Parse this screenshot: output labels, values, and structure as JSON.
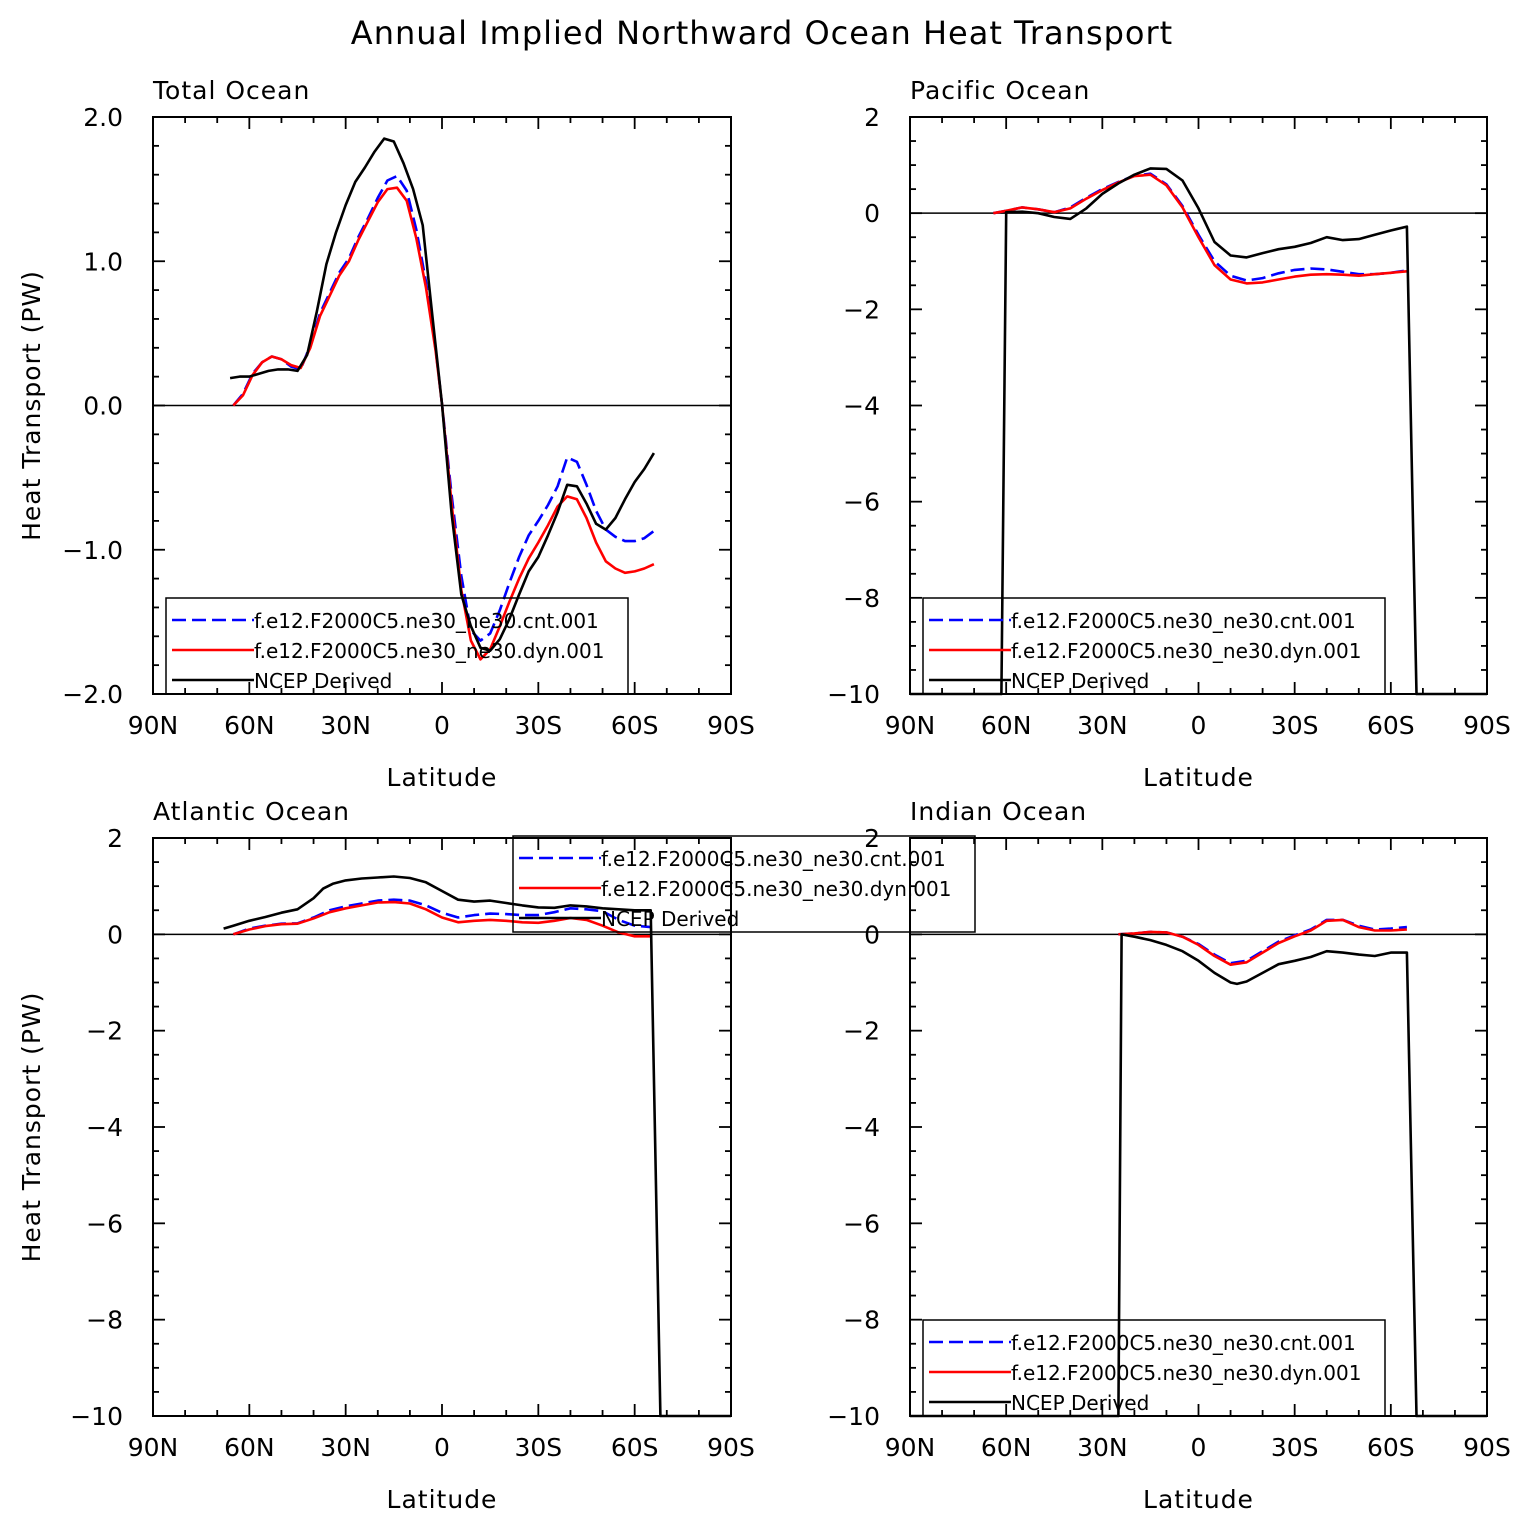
{
  "figure": {
    "title": "Annual Implied Northward Ocean Heat Transport"
  },
  "chart_data": [
    {
      "type": "line",
      "title": "Total Ocean",
      "xlabel": "Latitude",
      "ylabel": "Heat Transport (PW)",
      "xlim": [
        90,
        -90
      ],
      "ylim": [
        -2.0,
        2.0
      ],
      "xticks": [
        90,
        60,
        30,
        0,
        -30,
        -60,
        -90
      ],
      "xticklabels": [
        "90N",
        "60N",
        "30N",
        "0",
        "30S",
        "60S",
        "90S"
      ],
      "yticks": [
        -2.0,
        -1.0,
        0.0,
        1.0,
        2.0
      ],
      "yticklabels": [
        "−2.0",
        "−1.0",
        "0.0",
        "1.0",
        "2.0"
      ],
      "zero_line": true,
      "legend_position": "bottom-left",
      "series": [
        {
          "name": "f.e12.F2000C5.ne30_ne30.cnt.001",
          "color": "#0000ff",
          "dash": "dashed",
          "x": [
            65,
            62,
            59,
            56,
            53,
            50,
            47,
            44,
            41,
            38,
            35,
            32,
            29,
            26,
            23,
            20,
            17,
            14,
            11,
            8,
            5,
            2,
            0,
            -3,
            -6,
            -9,
            -12,
            -15,
            -18,
            -21,
            -24,
            -27,
            -30,
            -33,
            -36,
            -39,
            -42,
            -45,
            -48,
            -51,
            -54,
            -57,
            -60,
            -63,
            -66
          ],
          "y": [
            0.0,
            0.08,
            0.22,
            0.3,
            0.34,
            0.32,
            0.27,
            0.25,
            0.42,
            0.64,
            0.78,
            0.92,
            1.02,
            1.17,
            1.3,
            1.44,
            1.56,
            1.59,
            1.49,
            1.22,
            0.86,
            0.39,
            0.01,
            -0.62,
            -1.18,
            -1.56,
            -1.63,
            -1.58,
            -1.42,
            -1.23,
            -1.05,
            -0.9,
            -0.8,
            -0.69,
            -0.56,
            -0.36,
            -0.39,
            -0.55,
            -0.73,
            -0.86,
            -0.91,
            -0.94,
            -0.94,
            -0.92,
            -0.87
          ]
        },
        {
          "name": "f.e12.F2000C5.ne30_ne30.dyn.001",
          "color": "#ff0000",
          "dash": "solid",
          "x": [
            65,
            62,
            59,
            56,
            53,
            50,
            47,
            44,
            41,
            38,
            35,
            32,
            29,
            26,
            23,
            20,
            17,
            14,
            11,
            8,
            5,
            2,
            0,
            -3,
            -6,
            -9,
            -12,
            -15,
            -18,
            -21,
            -24,
            -27,
            -30,
            -33,
            -36,
            -39,
            -42,
            -45,
            -48,
            -51,
            -54,
            -57,
            -60,
            -63,
            -66
          ],
          "y": [
            0.0,
            0.07,
            0.21,
            0.3,
            0.34,
            0.32,
            0.28,
            0.26,
            0.4,
            0.62,
            0.76,
            0.9,
            1.0,
            1.15,
            1.28,
            1.41,
            1.5,
            1.51,
            1.42,
            1.16,
            0.82,
            0.38,
            0.01,
            -0.68,
            -1.28,
            -1.63,
            -1.76,
            -1.69,
            -1.53,
            -1.36,
            -1.2,
            -1.06,
            -0.95,
            -0.83,
            -0.7,
            -0.63,
            -0.65,
            -0.78,
            -0.95,
            -1.08,
            -1.13,
            -1.16,
            -1.15,
            -1.13,
            -1.1
          ]
        },
        {
          "name": "NCEP Derived",
          "color": "#000000",
          "dash": "solid",
          "x": [
            66,
            63,
            60,
            57,
            54,
            51,
            48,
            45,
            42,
            39,
            36,
            33,
            30,
            27,
            24,
            21,
            18,
            15,
            12,
            9,
            6,
            3,
            0,
            -3,
            -6,
            -9,
            -12,
            -15,
            -18,
            -21,
            -24,
            -27,
            -30,
            -33,
            -36,
            -39,
            -42,
            -45,
            -48,
            -51,
            -54,
            -57,
            -60,
            -63,
            -66
          ],
          "y": [
            0.19,
            0.2,
            0.2,
            0.22,
            0.24,
            0.25,
            0.25,
            0.24,
            0.35,
            0.65,
            0.98,
            1.2,
            1.39,
            1.55,
            1.65,
            1.76,
            1.85,
            1.83,
            1.68,
            1.5,
            1.25,
            0.62,
            0.01,
            -0.75,
            -1.31,
            -1.53,
            -1.68,
            -1.7,
            -1.62,
            -1.48,
            -1.31,
            -1.15,
            -1.05,
            -0.9,
            -0.74,
            -0.55,
            -0.56,
            -0.68,
            -0.82,
            -0.86,
            -0.78,
            -0.65,
            -0.53,
            -0.44,
            -0.33
          ]
        }
      ]
    },
    {
      "type": "line",
      "title": "Pacific Ocean",
      "xlabel": "Latitude",
      "ylabel": "",
      "xlim": [
        90,
        -90
      ],
      "ylim": [
        -10,
        2
      ],
      "xticks": [
        90,
        60,
        30,
        0,
        -30,
        -60,
        -90
      ],
      "xticklabels": [
        "90N",
        "60N",
        "30N",
        "0",
        "30S",
        "60S",
        "90S"
      ],
      "yticks": [
        -10,
        -8,
        -6,
        -4,
        -2,
        0,
        2
      ],
      "yticklabels": [
        "−10",
        "−8",
        "−6",
        "−4",
        "−2",
        "0",
        "2"
      ],
      "zero_line": true,
      "legend_position": "bottom-left",
      "series": [
        {
          "name": "f.e12.F2000C5.ne30_ne30.cnt.001",
          "color": "#0000ff",
          "dash": "dashed",
          "x": [
            64,
            60,
            55,
            50,
            45,
            40,
            35,
            30,
            25,
            20,
            15,
            10,
            5,
            0,
            -5,
            -10,
            -15,
            -20,
            -25,
            -30,
            -35,
            -40,
            -45,
            -50,
            -55,
            -60,
            -65
          ],
          "y": [
            0.0,
            0.05,
            0.12,
            0.08,
            0.02,
            0.12,
            0.32,
            0.5,
            0.65,
            0.78,
            0.82,
            0.6,
            0.15,
            -0.45,
            -1.0,
            -1.3,
            -1.4,
            -1.35,
            -1.25,
            -1.18,
            -1.15,
            -1.17,
            -1.22,
            -1.27,
            -1.27,
            -1.24,
            -1.19
          ]
        },
        {
          "name": "f.e12.F2000C5.ne30_ne30.dyn.001",
          "color": "#ff0000",
          "dash": "solid",
          "x": [
            64,
            60,
            55,
            50,
            45,
            40,
            35,
            30,
            25,
            20,
            15,
            10,
            5,
            0,
            -5,
            -10,
            -15,
            -20,
            -25,
            -30,
            -35,
            -40,
            -45,
            -50,
            -55,
            -60,
            -65
          ],
          "y": [
            0.0,
            0.05,
            0.12,
            0.08,
            0.02,
            0.1,
            0.3,
            0.48,
            0.64,
            0.77,
            0.8,
            0.58,
            0.12,
            -0.5,
            -1.08,
            -1.38,
            -1.46,
            -1.44,
            -1.38,
            -1.32,
            -1.28,
            -1.27,
            -1.28,
            -1.3,
            -1.27,
            -1.24,
            -1.21
          ]
        },
        {
          "name": "NCEP Derived",
          "color": "#000000",
          "dash": "solid",
          "x": [
            90,
            85,
            80,
            75,
            70,
            65,
            61.5,
            60,
            55,
            50,
            45,
            40,
            35,
            30,
            25,
            20,
            15,
            10,
            5,
            0,
            -5,
            -10,
            -15,
            -20,
            -25,
            -30,
            -35,
            -40,
            -45,
            -50,
            -55,
            -60,
            -65,
            -68,
            -70,
            -75,
            -80,
            -85,
            -90
          ],
          "y": [
            -10,
            -10,
            -10,
            -10,
            -10,
            -10,
            -10,
            0.02,
            0.03,
            0.0,
            -0.08,
            -0.12,
            0.1,
            0.4,
            0.62,
            0.8,
            0.93,
            0.92,
            0.68,
            0.1,
            -0.6,
            -0.88,
            -0.92,
            -0.83,
            -0.75,
            -0.7,
            -0.62,
            -0.5,
            -0.56,
            -0.54,
            -0.45,
            -0.36,
            -0.28,
            -10,
            -10,
            -10,
            -10,
            -10,
            -10
          ]
        }
      ]
    },
    {
      "type": "line",
      "title": "Atlantic Ocean",
      "xlabel": "Latitude",
      "ylabel": "Heat Transport (PW)",
      "xlim": [
        90,
        -90
      ],
      "ylim": [
        -10,
        2
      ],
      "xticks": [
        90,
        60,
        30,
        0,
        -30,
        -60,
        -90
      ],
      "xticklabels": [
        "90N",
        "60N",
        "30N",
        "0",
        "30S",
        "60S",
        "90S"
      ],
      "yticks": [
        -10,
        -8,
        -6,
        -4,
        -2,
        0,
        2
      ],
      "yticklabels": [
        "−10",
        "−8",
        "−6",
        "−4",
        "−2",
        "0",
        "2"
      ],
      "zero_line": true,
      "legend_position": "top-right",
      "series": [
        {
          "name": "f.e12.F2000C5.ne30_ne30.cnt.001",
          "color": "#0000ff",
          "dash": "dashed",
          "x": [
            65,
            60,
            55,
            50,
            45,
            40,
            35,
            30,
            25,
            20,
            15,
            10,
            5,
            0,
            -5,
            -10,
            -15,
            -20,
            -25,
            -30,
            -35,
            -40,
            -45,
            -50,
            -55,
            -60,
            -65
          ],
          "y": [
            0.0,
            0.12,
            0.18,
            0.22,
            0.23,
            0.35,
            0.5,
            0.58,
            0.64,
            0.7,
            0.72,
            0.7,
            0.6,
            0.45,
            0.35,
            0.4,
            0.43,
            0.42,
            0.4,
            0.4,
            0.46,
            0.54,
            0.52,
            0.48,
            0.3,
            0.18,
            0.15
          ]
        },
        {
          "name": "f.e12.F2000C5.ne30_ne30.dyn.001",
          "color": "#ff0000",
          "dash": "solid",
          "x": [
            65,
            60,
            55,
            50,
            45,
            40,
            35,
            30,
            25,
            20,
            15,
            10,
            5,
            0,
            -5,
            -10,
            -15,
            -20,
            -25,
            -30,
            -35,
            -40,
            -45,
            -50,
            -55,
            -60,
            -65
          ],
          "y": [
            0.0,
            0.1,
            0.17,
            0.21,
            0.22,
            0.33,
            0.46,
            0.54,
            0.6,
            0.66,
            0.67,
            0.64,
            0.52,
            0.35,
            0.25,
            0.28,
            0.3,
            0.28,
            0.25,
            0.24,
            0.28,
            0.34,
            0.3,
            0.18,
            0.04,
            -0.04,
            -0.04
          ]
        },
        {
          "name": "NCEP Derived",
          "color": "#000000",
          "dash": "solid",
          "x": [
            68,
            65,
            60,
            55,
            50,
            45,
            40,
            37,
            34,
            30,
            25,
            20,
            15,
            10,
            5,
            0,
            -5,
            -10,
            -15,
            -20,
            -25,
            -30,
            -35,
            -40,
            -45,
            -50,
            -55,
            -60,
            -65,
            -68,
            -72,
            -76,
            -80,
            -85,
            -90
          ],
          "y": [
            0.12,
            0.18,
            0.28,
            0.36,
            0.45,
            0.52,
            0.75,
            0.95,
            1.05,
            1.12,
            1.16,
            1.18,
            1.2,
            1.17,
            1.08,
            0.9,
            0.72,
            0.68,
            0.7,
            0.65,
            0.6,
            0.56,
            0.55,
            0.6,
            0.58,
            0.54,
            0.52,
            0.5,
            0.5,
            -10,
            -10,
            -10,
            -10,
            -10,
            -10
          ]
        }
      ]
    },
    {
      "type": "line",
      "title": "Indian Ocean",
      "xlabel": "Latitude",
      "ylabel": "",
      "xlim": [
        90,
        -90
      ],
      "ylim": [
        -10,
        2
      ],
      "xticks": [
        90,
        60,
        30,
        0,
        -30,
        -60,
        -90
      ],
      "xticklabels": [
        "90N",
        "60N",
        "30N",
        "0",
        "30S",
        "60S",
        "90S"
      ],
      "yticks": [
        -10,
        -8,
        -6,
        -4,
        -2,
        0,
        2
      ],
      "yticklabels": [
        "−10",
        "−8",
        "−6",
        "−4",
        "−2",
        "0",
        "2"
      ],
      "zero_line": true,
      "legend_position": "bottom-left",
      "series": [
        {
          "name": "f.e12.F2000C5.ne30_ne30.cnt.001",
          "color": "#0000ff",
          "dash": "dashed",
          "x": [
            25,
            20,
            15,
            10,
            5,
            0,
            -5,
            -10,
            -15,
            -20,
            -25,
            -30,
            -35,
            -40,
            -45,
            -50,
            -55,
            -60,
            -65
          ],
          "y": [
            0.0,
            0.02,
            0.05,
            0.04,
            -0.05,
            -0.2,
            -0.42,
            -0.6,
            -0.55,
            -0.35,
            -0.15,
            -0.02,
            0.1,
            0.3,
            0.3,
            0.18,
            0.1,
            0.12,
            0.15
          ]
        },
        {
          "name": "f.e12.F2000C5.ne30_ne30.dyn.001",
          "color": "#ff0000",
          "dash": "solid",
          "x": [
            25,
            20,
            15,
            10,
            5,
            0,
            -5,
            -10,
            -15,
            -20,
            -25,
            -30,
            -35,
            -40,
            -45,
            -50,
            -55,
            -60,
            -65
          ],
          "y": [
            0.0,
            0.02,
            0.05,
            0.04,
            -0.05,
            -0.22,
            -0.45,
            -0.63,
            -0.58,
            -0.38,
            -0.18,
            -0.04,
            0.08,
            0.28,
            0.3,
            0.15,
            0.08,
            0.08,
            0.1
          ]
        },
        {
          "name": "NCEP Derived",
          "color": "#000000",
          "dash": "solid",
          "x": [
            90,
            85,
            80,
            75,
            70,
            60,
            50,
            40,
            30,
            25,
            24,
            20,
            15,
            10,
            5,
            0,
            -5,
            -10,
            -12,
            -15,
            -20,
            -25,
            -30,
            -35,
            -40,
            -45,
            -50,
            -55,
            -60,
            -65,
            -68,
            -72,
            -76,
            -80,
            -85,
            -90
          ],
          "y": [
            -10,
            -10,
            -10,
            -10,
            -10,
            -10,
            -10,
            -10,
            -10,
            -10,
            0.0,
            -0.05,
            -0.12,
            -0.22,
            -0.35,
            -0.55,
            -0.8,
            -1.0,
            -1.03,
            -0.98,
            -0.8,
            -0.62,
            -0.55,
            -0.47,
            -0.35,
            -0.38,
            -0.42,
            -0.45,
            -0.38,
            -0.38,
            -10,
            -10,
            -10,
            -10,
            -10,
            -10
          ]
        }
      ]
    }
  ]
}
